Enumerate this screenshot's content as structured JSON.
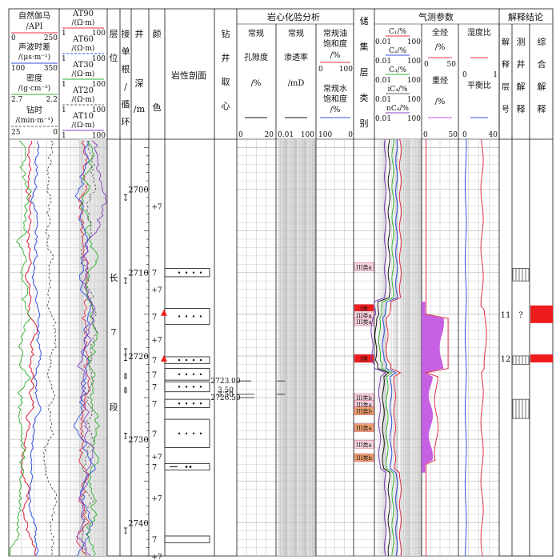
{
  "depth": {
    "title": "井深/m",
    "ticks": [
      2700,
      2710,
      2720,
      2730,
      2740
    ],
    "range": [
      2694,
      2744
    ]
  },
  "headers": {
    "col_gamma": {
      "title": "自然伽马",
      "unit": "/API",
      "min": "0",
      "max": "250"
    },
    "col_ac": {
      "title": "声波时差",
      "unit": "/(μs·m⁻¹)",
      "min": "100",
      "max": "350"
    },
    "col_den": {
      "title": "密度",
      "unit": "/(g·cm⁻³)",
      "min": "2.7",
      "max": "2.2"
    },
    "col_rop": {
      "title": "钻时",
      "unit": "/(min·m⁻¹)",
      "min": "25",
      "max": "0"
    },
    "res": [
      {
        "name": "AT90",
        "unit": "/(Ω·m)",
        "min": "1",
        "max": "100",
        "color": "#e0304a"
      },
      {
        "name": "AT60",
        "unit": "/(Ω·m)",
        "min": "1",
        "max": "100",
        "color": "#3050e0"
      },
      {
        "name": "AT30",
        "unit": "/(Ω·m)",
        "min": "1",
        "max": "100",
        "color": "#30b030"
      },
      {
        "name": "AT20",
        "unit": "/(Ω·m)",
        "min": "1",
        "max": "100",
        "color": "#606060"
      },
      {
        "name": "AT10",
        "unit": "/(Ω·m)",
        "min": "1",
        "max": "100",
        "color": "#8040c0"
      }
    ],
    "layer": "层位",
    "cycle": "接单根/循环",
    "color": "颜色",
    "lith": "岩性剖面",
    "core": "钻井取心",
    "lab_group": "岩心化验分析",
    "porosity": {
      "title": "常规",
      "sub": "孔隙度",
      "unit": "/%",
      "min": "0",
      "max": "20"
    },
    "perm": {
      "title": "常规",
      "sub": "渗透率",
      "unit": "/mD",
      "min": "0.01",
      "max": "100"
    },
    "oilsat": {
      "title": "常规油饱和度",
      "unit": "/%",
      "min": "0",
      "max": "100"
    },
    "watersat": {
      "title": "常规水饱和度",
      "unit": "/%",
      "min": "100",
      "max": "0"
    },
    "reservoir": "储集层类别",
    "gas_group": "气测参数",
    "gas_comp": {
      "items": [
        "C₁/%",
        "C₂/%",
        "C₃/%",
        "iC₄/%",
        "nC₄/%"
      ],
      "min": "0.01",
      "max": "100"
    },
    "total_hc": {
      "title": "全烃",
      "unit": "/%",
      "min": "0",
      "max": "50"
    },
    "heavy_hc": {
      "title": "重烃",
      "unit": "/%"
    },
    "wetness": {
      "title": "湿度比",
      "min": "0",
      "max": "1"
    },
    "balance": {
      "title": "平衡比",
      "max": "40"
    },
    "interp_group": "解释结论",
    "interp_layer": "解释层号",
    "logging": "测井解释",
    "combined": "综合解释"
  },
  "layer_name": [
    "长",
    "7",
    "段"
  ],
  "depth_labels_core": [
    "2723.00",
    "3.50",
    "3.50",
    "2726.50"
  ],
  "reservoir_classes": [
    {
      "label": "III类a",
      "depth": 2709.3,
      "kind": "light"
    },
    {
      "label": "I类",
      "depth": 2714.3,
      "kind": "red"
    },
    {
      "label": "III类a",
      "depth": 2715.1,
      "kind": "light"
    },
    {
      "label": "III类a",
      "depth": 2715.9,
      "kind": "light"
    },
    {
      "label": "I类",
      "depth": 2720.3,
      "kind": "red"
    },
    {
      "label": "III类b",
      "depth": 2725.0,
      "kind": "light"
    },
    {
      "label": "III类a",
      "depth": 2725.8,
      "kind": "light"
    },
    {
      "label": "III类b",
      "depth": 2726.6,
      "kind": "orange"
    },
    {
      "label": "III类a",
      "depth": 2728.6,
      "kind": "orange"
    },
    {
      "label": "III类a",
      "depth": 2730.6,
      "kind": "light"
    },
    {
      "label": "III类b",
      "depth": 2732.2,
      "kind": "orange"
    }
  ],
  "interp_layers": [
    {
      "number": "11",
      "logging_symbol": "?",
      "depth": 2715.0
    },
    {
      "number": "12",
      "logging_symbol": "",
      "depth": 2720.3
    }
  ],
  "colors": {
    "red": "#ee1c1c",
    "magenta": "#c050e0",
    "orange": "#f0a070"
  }
}
